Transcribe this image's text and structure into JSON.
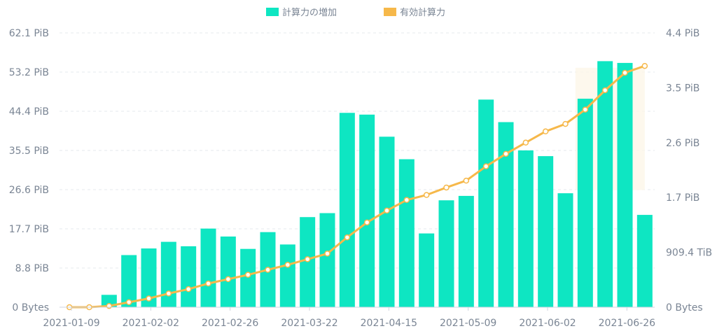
{
  "chart_data": {
    "type": "bar",
    "legend": {
      "placement": "top-center",
      "items": [
        {
          "label": "計算力の増加",
          "color": "#0ee6c2"
        },
        {
          "label": "有効計算力",
          "color": "#f6b84a"
        }
      ]
    },
    "x_ticks": [
      "2021-01-09",
      "2021-02-02",
      "2021-02-26",
      "2021-03-22",
      "2021-04-15",
      "2021-05-09",
      "2021-06-02",
      "2021-06-26"
    ],
    "y_left": {
      "ticks": [
        "0 Bytes",
        "8.8 PiB",
        "17.7 PiB",
        "26.6 PiB",
        "35.5 PiB",
        "44.4 PiB",
        "53.2 PiB",
        "62.1 PiB"
      ],
      "range_pib": [
        0,
        62.1
      ]
    },
    "y_right": {
      "ticks": [
        "0 Bytes",
        "909.4 TiB",
        "1.7 PiB",
        "2.6 PiB",
        "3.5 PiB",
        "4.4 PiB"
      ],
      "range_pib": [
        0,
        4.4
      ]
    },
    "grid": true,
    "series": [
      {
        "name": "計算力の増加",
        "type": "bar",
        "axis": "left",
        "unit": "PiB",
        "color": "#0ee6c2",
        "values": [
          0,
          0,
          2.8,
          11.8,
          13.3,
          14.8,
          13.8,
          17.8,
          16.0,
          13.2,
          17.0,
          14.2,
          20.4,
          21.3,
          44.0,
          43.6,
          38.6,
          33.5,
          16.7,
          24.2,
          25.2,
          47.0,
          41.9,
          35.5,
          34.2,
          25.8,
          47.2,
          55.7,
          55.3,
          20.9
        ]
      },
      {
        "name": "有効計算力",
        "type": "line",
        "axis": "right",
        "unit": "PiB",
        "color": "#f6b84a",
        "values": [
          0.0,
          0.0,
          0.02,
          0.08,
          0.14,
          0.22,
          0.29,
          0.38,
          0.45,
          0.52,
          0.6,
          0.68,
          0.77,
          0.86,
          1.12,
          1.36,
          1.55,
          1.72,
          1.8,
          1.92,
          2.03,
          2.26,
          2.46,
          2.64,
          2.82,
          2.94,
          3.17,
          3.48,
          3.76,
          3.87
        ]
      }
    ]
  }
}
